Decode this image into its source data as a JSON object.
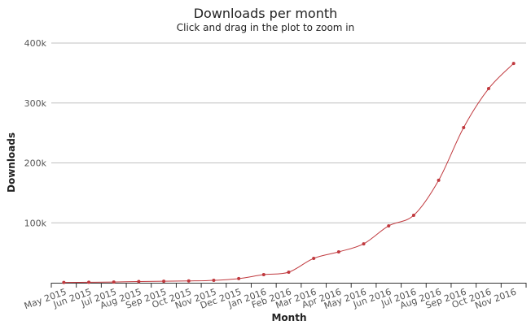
{
  "chart_data": {
    "type": "line",
    "title": "Downloads per month",
    "subtitle": "Click and drag in the plot to zoom in",
    "x_label": "Month",
    "y_label": "Downloads",
    "categories": [
      "May 2015",
      "Jun 2015",
      "Jul 2015",
      "Aug 2015",
      "Sep 2015",
      "Oct 2015",
      "Nov 2015",
      "Dec 2015",
      "Jan 2016",
      "Feb 2016",
      "Mar 2016",
      "Apr 2016",
      "May 2016",
      "Jun 2016",
      "Jul 2016",
      "Aug 2016",
      "Sep 2016",
      "Oct 2016",
      "Nov 2016"
    ],
    "series": [
      {
        "name": "Downloads",
        "color": "#c0393e",
        "values": [
          500,
          800,
          1200,
          2000,
          2500,
          3000,
          4000,
          7000,
          13500,
          17600,
          40700,
          51500,
          65000,
          95000,
          112500,
          171000,
          259000,
          324000,
          366000
        ]
      }
    ],
    "ylim": [
      0,
      400000
    ],
    "yticks": [
      {
        "value": 100000,
        "label": "100k"
      },
      {
        "value": 200000,
        "label": "200k"
      },
      {
        "value": 300000,
        "label": "300k"
      },
      {
        "value": 400000,
        "label": "400k"
      }
    ],
    "grid": true
  }
}
